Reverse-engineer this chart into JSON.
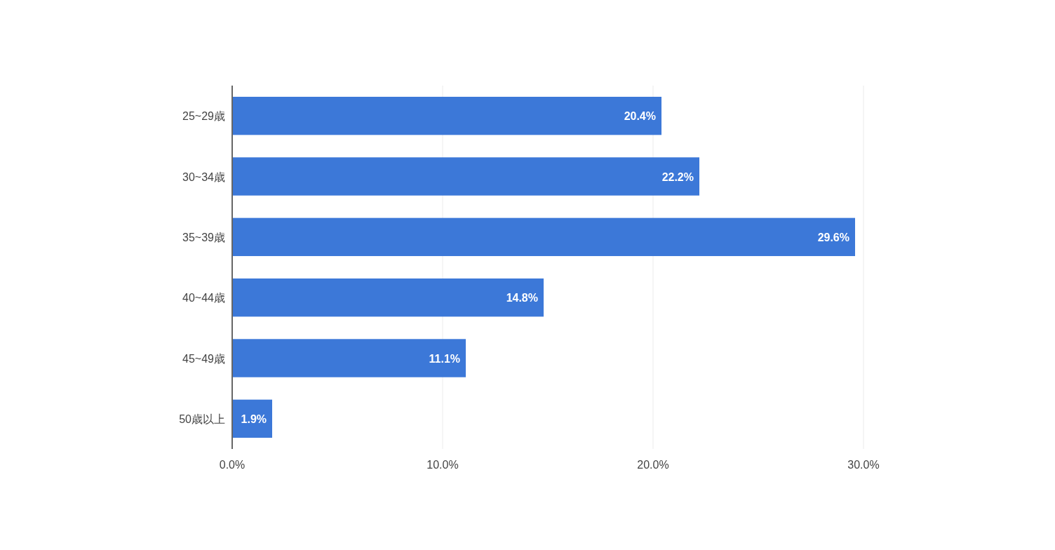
{
  "chart_data": {
    "type": "bar",
    "orientation": "horizontal",
    "categories": [
      "25~29歳",
      "30~34歳",
      "35~39歳",
      "40~44歳",
      "45~49歳",
      "50歳以上"
    ],
    "values": [
      20.4,
      22.2,
      29.6,
      14.8,
      11.1,
      1.9
    ],
    "value_labels": [
      "20.4%",
      "22.2%",
      "29.6%",
      "14.8%",
      "11.1%",
      "1.9%"
    ],
    "color": "#3c78d8",
    "xlim": [
      0,
      30
    ],
    "xticks": [
      {
        "value": 0,
        "label": "0.0%"
      },
      {
        "value": 10,
        "label": "10.0%"
      },
      {
        "value": 20,
        "label": "20.0%"
      },
      {
        "value": 30,
        "label": "30.0%"
      }
    ],
    "grid": "x"
  }
}
